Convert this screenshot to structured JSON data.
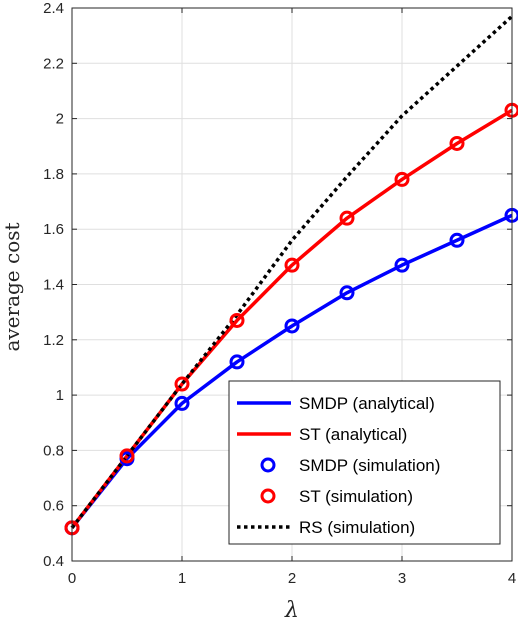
{
  "chart_data": {
    "type": "line",
    "xlabel": "λ",
    "ylabel": "average cost",
    "xlim": [
      0,
      4
    ],
    "ylim": [
      0.4,
      2.4
    ],
    "xticks": [
      0,
      1,
      2,
      3,
      4
    ],
    "xtick_labels": [
      "0",
      "1",
      "2",
      "3",
      "4"
    ],
    "yticks": [
      0.4,
      0.6,
      0.8,
      1.0,
      1.2,
      1.4,
      1.6,
      1.8,
      2.0,
      2.2,
      2.4
    ],
    "ytick_labels": [
      "0.4",
      "0.6",
      "0.8",
      "1",
      "1.2",
      "1.4",
      "1.6",
      "1.8",
      "2",
      "2.2",
      "2.4"
    ],
    "grid": true,
    "legend_position": "bottom-right",
    "series": [
      {
        "name": "SMDP (analytical)",
        "style": "line",
        "color": "#0000ff",
        "x": [
          0,
          0.5,
          1,
          1.5,
          2,
          2.5,
          3,
          3.5,
          4
        ],
        "y": [
          0.52,
          0.77,
          0.97,
          1.12,
          1.25,
          1.37,
          1.47,
          1.56,
          1.65
        ]
      },
      {
        "name": "ST (analytical)",
        "style": "line",
        "color": "#ff0000",
        "x": [
          0,
          0.5,
          1,
          1.5,
          2,
          2.5,
          3,
          3.5,
          4
        ],
        "y": [
          0.52,
          0.78,
          1.04,
          1.27,
          1.47,
          1.64,
          1.78,
          1.91,
          2.03
        ]
      },
      {
        "name": "SMDP (simulation)",
        "style": "markers",
        "color": "#0000ff",
        "x": [
          0,
          0.5,
          1,
          1.5,
          2,
          2.5,
          3,
          3.5,
          4
        ],
        "y": [
          0.52,
          0.77,
          0.97,
          1.12,
          1.25,
          1.37,
          1.47,
          1.56,
          1.65
        ]
      },
      {
        "name": "ST (simulation)",
        "style": "markers",
        "color": "#ff0000",
        "x": [
          0,
          0.5,
          1,
          1.5,
          2,
          2.5,
          3,
          3.5,
          4
        ],
        "y": [
          0.52,
          0.78,
          1.04,
          1.27,
          1.47,
          1.64,
          1.78,
          1.91,
          2.03
        ]
      },
      {
        "name": "RS (simulation)",
        "style": "dotted",
        "color": "#000000",
        "x": [
          0,
          0.5,
          1,
          1.5,
          2,
          2.5,
          3,
          3.5,
          4
        ],
        "y": [
          0.52,
          0.78,
          1.04,
          1.29,
          1.56,
          1.79,
          2.01,
          2.19,
          2.37
        ]
      }
    ]
  }
}
